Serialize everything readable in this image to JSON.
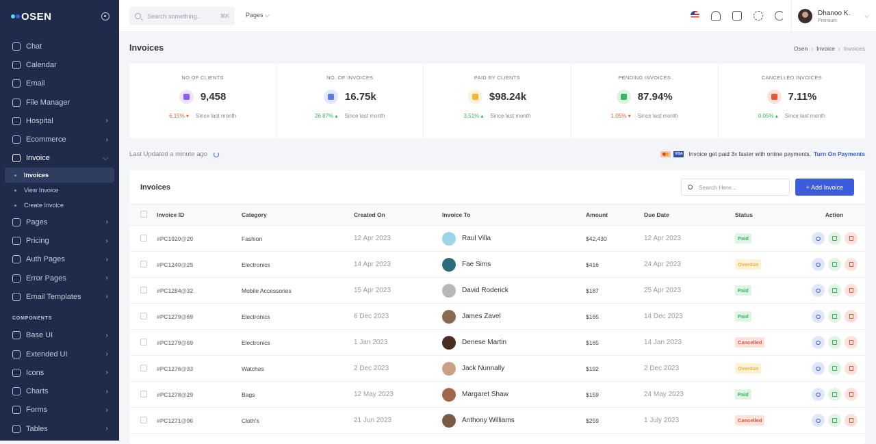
{
  "app": {
    "logo": "OSEN"
  },
  "sidebar": {
    "items_top": [
      {
        "label": "Chat",
        "icon": "chat-icon",
        "chevron": false
      },
      {
        "label": "Calendar",
        "icon": "calendar-icon",
        "chevron": false
      },
      {
        "label": "Email",
        "icon": "email-icon",
        "chevron": false
      },
      {
        "label": "File Manager",
        "icon": "folder-icon",
        "chevron": false
      },
      {
        "label": "Hospital",
        "icon": "hospital-icon",
        "chevron": true
      },
      {
        "label": "Ecommerce",
        "icon": "cart-icon",
        "chevron": true
      }
    ],
    "invoice": {
      "label": "Invoice",
      "icon": "invoice-icon"
    },
    "invoice_sub": [
      "Invoices",
      "View Invoice",
      "Create Invoice"
    ],
    "items_mid": [
      {
        "label": "Pages",
        "icon": "pages-icon"
      },
      {
        "label": "Pricing",
        "icon": "pricing-icon"
      },
      {
        "label": "Auth Pages",
        "icon": "lock-icon"
      },
      {
        "label": "Error Pages",
        "icon": "error-icon"
      },
      {
        "label": "Email Templates",
        "icon": "template-icon"
      }
    ],
    "components_title": "COMPONENTS",
    "items_components": [
      {
        "label": "Base UI",
        "icon": "base-ui-icon"
      },
      {
        "label": "Extended UI",
        "icon": "extended-ui-icon"
      },
      {
        "label": "Icons",
        "icon": "icons-icon"
      },
      {
        "label": "Charts",
        "icon": "chart-icon"
      },
      {
        "label": "Forms",
        "icon": "form-icon"
      },
      {
        "label": "Tables",
        "icon": "table-icon"
      }
    ]
  },
  "topbar": {
    "search_placeholder": "Search something..",
    "search_shortcut": "⌘K",
    "pages_menu": "Pages ⌵",
    "user_name": "Dhanoo K.",
    "user_tier": "Premium"
  },
  "page": {
    "title": "Invoices",
    "breadcrumb": [
      "Osen",
      "Invoice",
      "Invoices"
    ]
  },
  "stats": [
    {
      "label": "NO.OF CLIENTS",
      "value": "9,458",
      "change": "6.15%",
      "direction": "down",
      "note": "Since last month",
      "icon": "users-icon",
      "color": "#8b5cf6",
      "bg": "#ede5fd"
    },
    {
      "label": "NO. OF INVOICES",
      "value": "16.75k",
      "change": "26.87%",
      "direction": "up",
      "note": "Since last month",
      "icon": "invoice-icon",
      "color": "#5c7ae8",
      "bg": "#e2e8fb"
    },
    {
      "label": "PAID BY CLIENTS",
      "value": "$98.24k",
      "change": "3.51%",
      "direction": "up",
      "note": "Since last month",
      "icon": "coins-icon",
      "color": "#f4b63a",
      "bg": "#fdf1d6"
    },
    {
      "label": "PENDING INVOICES",
      "value": "87.94%",
      "change": "1.05%",
      "direction": "down",
      "note": "Since last month",
      "icon": "money-icon",
      "color": "#35b660",
      "bg": "#dff4e4"
    },
    {
      "label": "CANCELLED INVOICES",
      "value": "7.11%",
      "change": "0.05%",
      "direction": "up",
      "note": "Since last month",
      "icon": "cancel-doc-icon",
      "color": "#e8553c",
      "bg": "#fde2dc"
    }
  ],
  "updated": "Last Updated a minute ago",
  "promo": {
    "text": "Invoice get paid 3x faster with online payments,",
    "link": "Turn On Payments",
    "visa": "VISA"
  },
  "table": {
    "title": "Invoices",
    "search_placeholder": "Search Here...",
    "add_label": "+ Add Invoice",
    "columns": [
      "Invoice ID",
      "Category",
      "Created On",
      "Invoice To",
      "Amount",
      "Due Date",
      "Status",
      "Action"
    ],
    "rows": [
      {
        "id": "#PC1020@20",
        "category": "Fashion",
        "created": "12 Apr 2023",
        "to": "Raul Villa",
        "avatar": "#9fd4e8",
        "amount": "$42,430",
        "due": "12 Apr 2023",
        "status": "Paid"
      },
      {
        "id": "#PC1240@25",
        "category": "Electronics",
        "created": "14 Apr 2023",
        "to": "Fae Sims",
        "avatar": "#2d6a7a",
        "amount": "$416",
        "due": "24 Apr 2023",
        "status": "Overdue"
      },
      {
        "id": "#PC1284@32",
        "category": "Mobile Accessories",
        "created": "15 Apr 2023",
        "to": "David Roderick",
        "avatar": "#b8b8b8",
        "amount": "$187",
        "due": "25 Apr 2023",
        "status": "Paid"
      },
      {
        "id": "#PC1279@69",
        "category": "Electronics",
        "created": "6 Dec 2023",
        "to": "James Zavel",
        "avatar": "#8a6a55",
        "amount": "$165",
        "due": "14 Dec 2023",
        "status": "Paid"
      },
      {
        "id": "#PC1279@69",
        "category": "Electronics",
        "created": "1 Jan 2023",
        "to": "Denese Martin",
        "avatar": "#4a2e22",
        "amount": "$165",
        "due": "14 Jan 2023",
        "status": "Cancelled"
      },
      {
        "id": "#PC1276@33",
        "category": "Watches",
        "created": "2 Dec 2023",
        "to": "Jack Nunnally",
        "avatar": "#c9a186",
        "amount": "$192",
        "due": "2 Dec 2023",
        "status": "Overdue"
      },
      {
        "id": "#PC1278@29",
        "category": "Bags",
        "created": "12 May 2023",
        "to": "Margaret Shaw",
        "avatar": "#a0684a",
        "amount": "$159",
        "due": "24 May 2023",
        "status": "Paid"
      },
      {
        "id": "#PC1271@96",
        "category": "Cloth's",
        "created": "21 Jun 2023",
        "to": "Anthony Williams",
        "avatar": "#7a5a45",
        "amount": "$259",
        "due": "1 July 2023",
        "status": "Cancelled"
      }
    ]
  }
}
